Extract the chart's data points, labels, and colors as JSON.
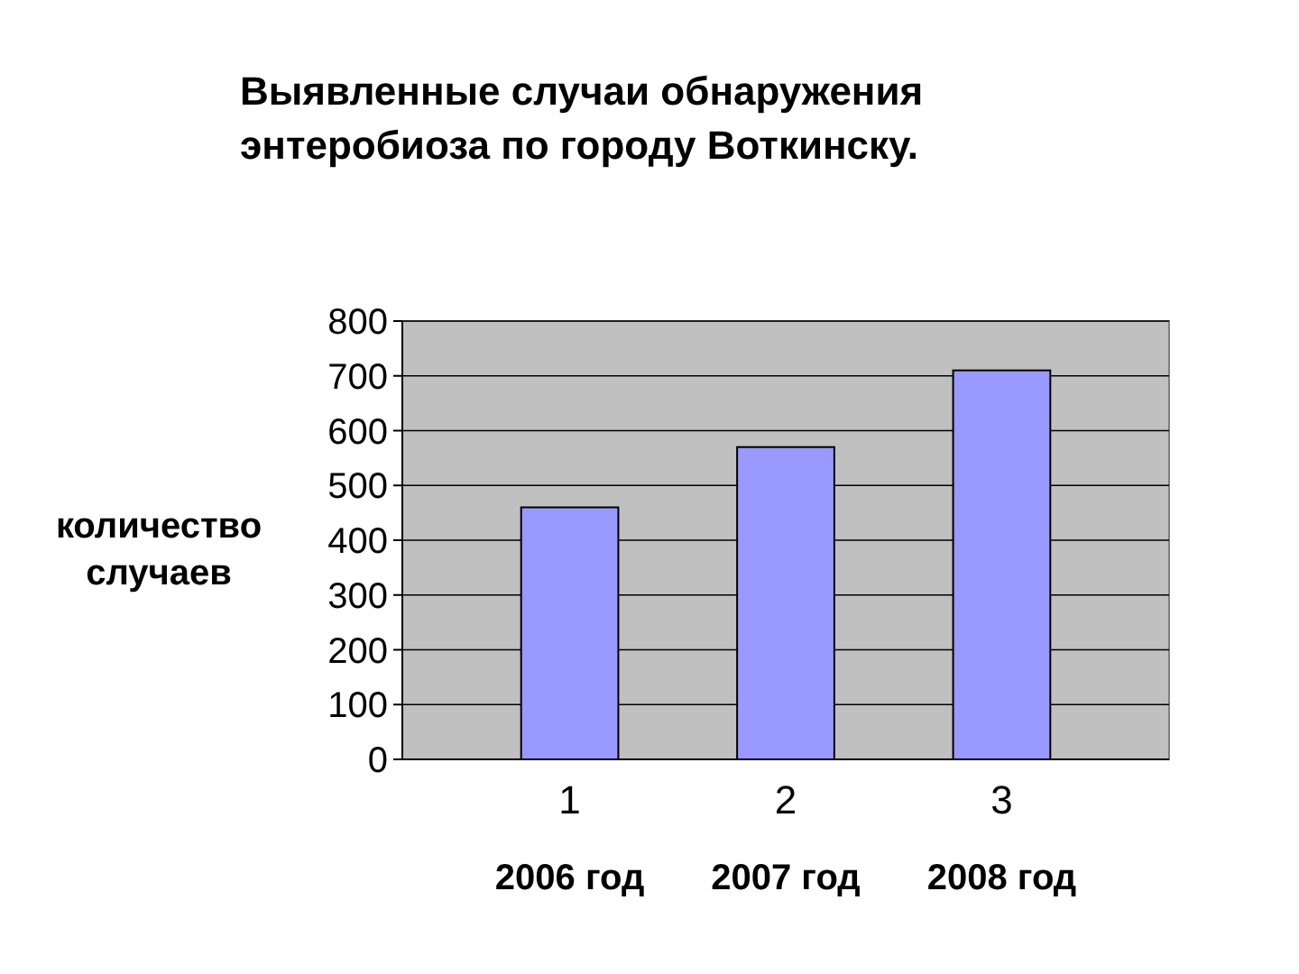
{
  "chart_data": {
    "type": "bar",
    "title": "Выявленные случаи обнаружения энтеробиоза по городу Воткинску.",
    "ylabel": "количество случаев",
    "categories": [
      "1",
      "2",
      "3"
    ],
    "values": [
      460,
      570,
      710
    ],
    "color": "#9999ff",
    "ylim": [
      0,
      800
    ],
    "yticks": [
      0,
      100,
      200,
      300,
      400,
      500,
      600,
      700,
      800
    ],
    "grid": "y",
    "annotations": [
      "2006 год",
      "2007 год",
      "2008 год"
    ]
  }
}
